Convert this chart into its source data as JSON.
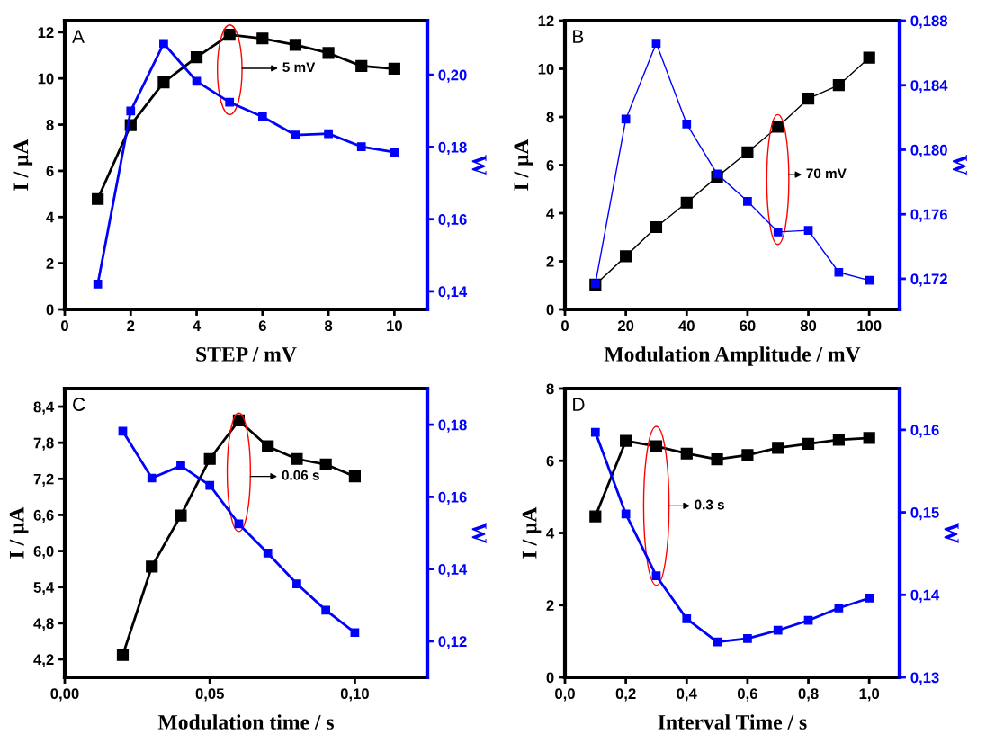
{
  "chart_data": [
    {
      "type": "line",
      "xlabel": "STEP / mV",
      "ylabel": "I / μA",
      "y2label": "W",
      "marker": "square",
      "line_style": "solid",
      "x": [
        1,
        2,
        3,
        4,
        5,
        6,
        7,
        8,
        9,
        10
      ],
      "series": [
        {
          "color": "#000000",
          "values": [
            4.78,
            7.98,
            9.83,
            10.92,
            11.89,
            11.73,
            11.45,
            11.1,
            10.54,
            10.42
          ]
        },
        {
          "color": "#0000ff",
          "axis": "y2",
          "values": [
            0.142,
            0.19,
            0.2087,
            0.1982,
            0.1924,
            0.1884,
            0.1833,
            0.1837,
            0.1801,
            0.1786
          ]
        }
      ],
      "xlim": [
        0,
        11
      ],
      "xticks": [
        0,
        2,
        4,
        6,
        8,
        10
      ],
      "ylim": [
        0,
        12.5
      ],
      "yticks": [
        0,
        2,
        4,
        6,
        8,
        10,
        12
      ],
      "y2lim": [
        0.135,
        0.215
      ],
      "y2ticks": [
        {
          "value": 0.14,
          "label": "0,14"
        },
        {
          "value": 0.16,
          "label": "0,16"
        },
        {
          "value": 0.18,
          "label": "0,18"
        },
        {
          "value": 0.2,
          "label": "0,20"
        }
      ],
      "annotations": [
        "A",
        "5 mV"
      ]
    },
    {
      "type": "line",
      "xlabel": "Modulation Amplitude / mV",
      "ylabel": "I / μA",
      "y2label": "W",
      "marker": "square",
      "line_style": "solid",
      "x": [
        10,
        20,
        30,
        40,
        50,
        60,
        70,
        80,
        90,
        100
      ],
      "series": [
        {
          "color": "#000000",
          "values": [
            1.03,
            2.21,
            3.42,
            4.44,
            5.51,
            6.53,
            7.59,
            8.76,
            9.32,
            10.46
          ]
        },
        {
          "color": "#0000ff",
          "axis": "y2",
          "values": [
            0.1717,
            0.1819,
            0.1866,
            0.1816,
            0.1785,
            0.1768,
            0.1749,
            0.175,
            0.1724,
            0.1719
          ]
        }
      ],
      "xlim": [
        0,
        110
      ],
      "xticks": [
        0,
        20,
        40,
        60,
        80,
        100
      ],
      "ylim": [
        0,
        12
      ],
      "yticks": [
        0,
        2,
        4,
        6,
        8,
        10,
        12
      ],
      "y2lim": [
        0.1701,
        0.188
      ],
      "y2ticks": [
        {
          "value": 0.172,
          "label": "0,172"
        },
        {
          "value": 0.176,
          "label": "0,176"
        },
        {
          "value": 0.18,
          "label": "0,180"
        },
        {
          "value": 0.184,
          "label": "0,184"
        },
        {
          "value": 0.188,
          "label": "0,188"
        }
      ],
      "annotations": [
        "B",
        "70 mV"
      ]
    },
    {
      "type": "line",
      "xlabel": "Modulation time / s",
      "ylabel": "I / μA",
      "y2label": "W",
      "marker": "square",
      "line_style": "solid",
      "x": [
        0.02,
        0.03,
        0.04,
        0.05,
        0.06,
        0.07,
        0.08,
        0.09,
        0.1
      ],
      "series": [
        {
          "color": "#000000",
          "values": [
            4.27,
            5.74,
            6.59,
            7.53,
            8.17,
            7.74,
            7.53,
            7.44,
            7.24
          ]
        },
        {
          "color": "#0000ff",
          "axis": "y2",
          "values": [
            0.1782,
            0.1652,
            0.1686,
            0.1632,
            0.1525,
            0.1444,
            0.1359,
            0.1286,
            0.1224
          ]
        }
      ],
      "xlim": [
        0,
        0.125
      ],
      "xticks": [
        {
          "value": 0,
          "label": "0,00"
        },
        {
          "value": 0.05,
          "label": "0,05"
        },
        {
          "value": 0.1,
          "label": "0,10"
        }
      ],
      "ylim": [
        3.9,
        8.7
      ],
      "yticks": [
        {
          "value": 4.2,
          "label": "4,2"
        },
        {
          "value": 4.8,
          "label": "4,8"
        },
        {
          "value": 5.4,
          "label": "5,4"
        },
        {
          "value": 6.0,
          "label": "6,0"
        },
        {
          "value": 6.6,
          "label": "6,6"
        },
        {
          "value": 7.2,
          "label": "7,2"
        },
        {
          "value": 7.8,
          "label": "7,8"
        },
        {
          "value": 8.4,
          "label": "8,4"
        }
      ],
      "y2lim": [
        0.11,
        0.19
      ],
      "y2ticks": [
        {
          "value": 0.12,
          "label": "0,12"
        },
        {
          "value": 0.14,
          "label": "0,14"
        },
        {
          "value": 0.16,
          "label": "0,16"
        },
        {
          "value": 0.18,
          "label": "0,18"
        }
      ],
      "annotations": [
        "C",
        "0.06 s"
      ]
    },
    {
      "type": "line",
      "xlabel": "Interval Time / s",
      "ylabel": "I / μA",
      "y2label": "W",
      "marker": "square",
      "line_style": "solid",
      "x": [
        0.1,
        0.2,
        0.3,
        0.4,
        0.5,
        0.6,
        0.7,
        0.8,
        0.9,
        1.0
      ],
      "series": [
        {
          "color": "#000000",
          "values": [
            4.46,
            6.55,
            6.4,
            6.2,
            6.04,
            6.16,
            6.36,
            6.47,
            6.58,
            6.63
          ]
        },
        {
          "color": "#0000ff",
          "axis": "y2",
          "values": [
            0.1597,
            0.1498,
            0.1423,
            0.1371,
            0.1343,
            0.1347,
            0.1357,
            0.1369,
            0.1384,
            0.1396
          ]
        }
      ],
      "xlim": [
        0,
        1.1
      ],
      "xticks": [
        {
          "value": 0,
          "label": "0,0"
        },
        {
          "value": 0.2,
          "label": "0,2"
        },
        {
          "value": 0.4,
          "label": "0,4"
        },
        {
          "value": 0.6,
          "label": "0,6"
        },
        {
          "value": 0.8,
          "label": "0,8"
        },
        {
          "value": 1.0,
          "label": "1,0"
        }
      ],
      "ylim": [
        0,
        8
      ],
      "yticks": [
        0,
        2,
        4,
        6,
        8
      ],
      "y2lim": [
        0.13,
        0.165
      ],
      "y2ticks": [
        {
          "value": 0.13,
          "label": "0,13"
        },
        {
          "value": 0.14,
          "label": "0,14"
        },
        {
          "value": 0.15,
          "label": "0,15"
        },
        {
          "value": 0.16,
          "label": "0,16"
        }
      ],
      "annotations": [
        "D",
        "0.3 s"
      ]
    }
  ]
}
